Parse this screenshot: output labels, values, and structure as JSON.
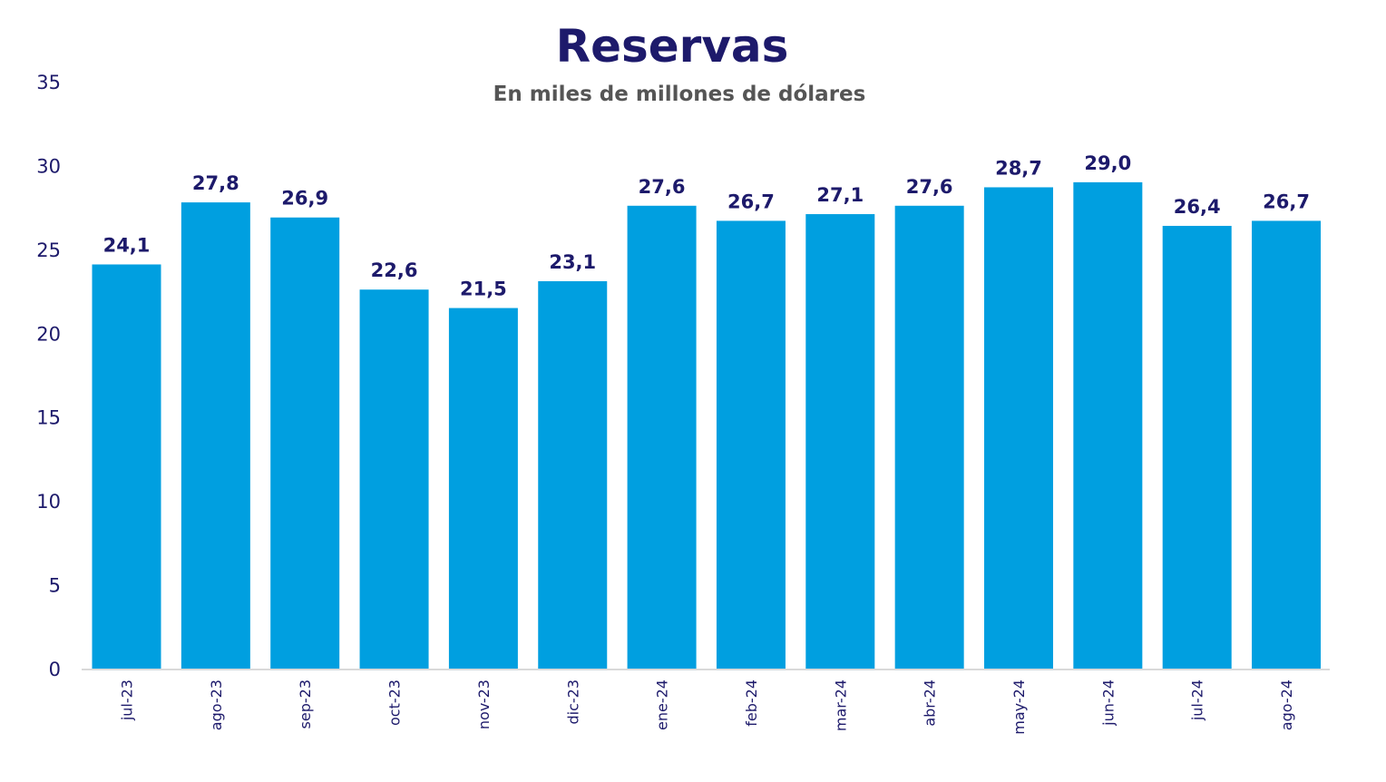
{
  "chart_data": {
    "type": "bar",
    "title": "Reservas",
    "subtitle": "En miles de millones de dólares",
    "xlabel": "",
    "ylabel": "",
    "ylim": [
      0,
      35
    ],
    "yticks": [
      0,
      5,
      10,
      15,
      20,
      25,
      30,
      35
    ],
    "grid": false,
    "categories": [
      "jul-23",
      "ago-23",
      "sep-23",
      "oct-23",
      "nov-23",
      "dic-23",
      "ene-24",
      "feb-24",
      "mar-24",
      "abr-24",
      "may-24",
      "jun-24",
      "jul-24",
      "ago-24"
    ],
    "values": [
      24.1,
      27.8,
      26.9,
      22.6,
      21.5,
      23.1,
      27.6,
      26.7,
      27.1,
      27.6,
      28.7,
      29.0,
      26.4,
      26.7
    ],
    "data_labels": [
      "24,1",
      "27,8",
      "26,9",
      "22,6",
      "21,5",
      "23,1",
      "27,6",
      "26,7",
      "27,1",
      "27,6",
      "28,7",
      "29,0",
      "26,4",
      "26,7"
    ],
    "colors": {
      "bar": "#009fe0",
      "label": "#1d1a6b",
      "axis": "#d9d9d9",
      "tick": "#1d1a6b"
    }
  }
}
